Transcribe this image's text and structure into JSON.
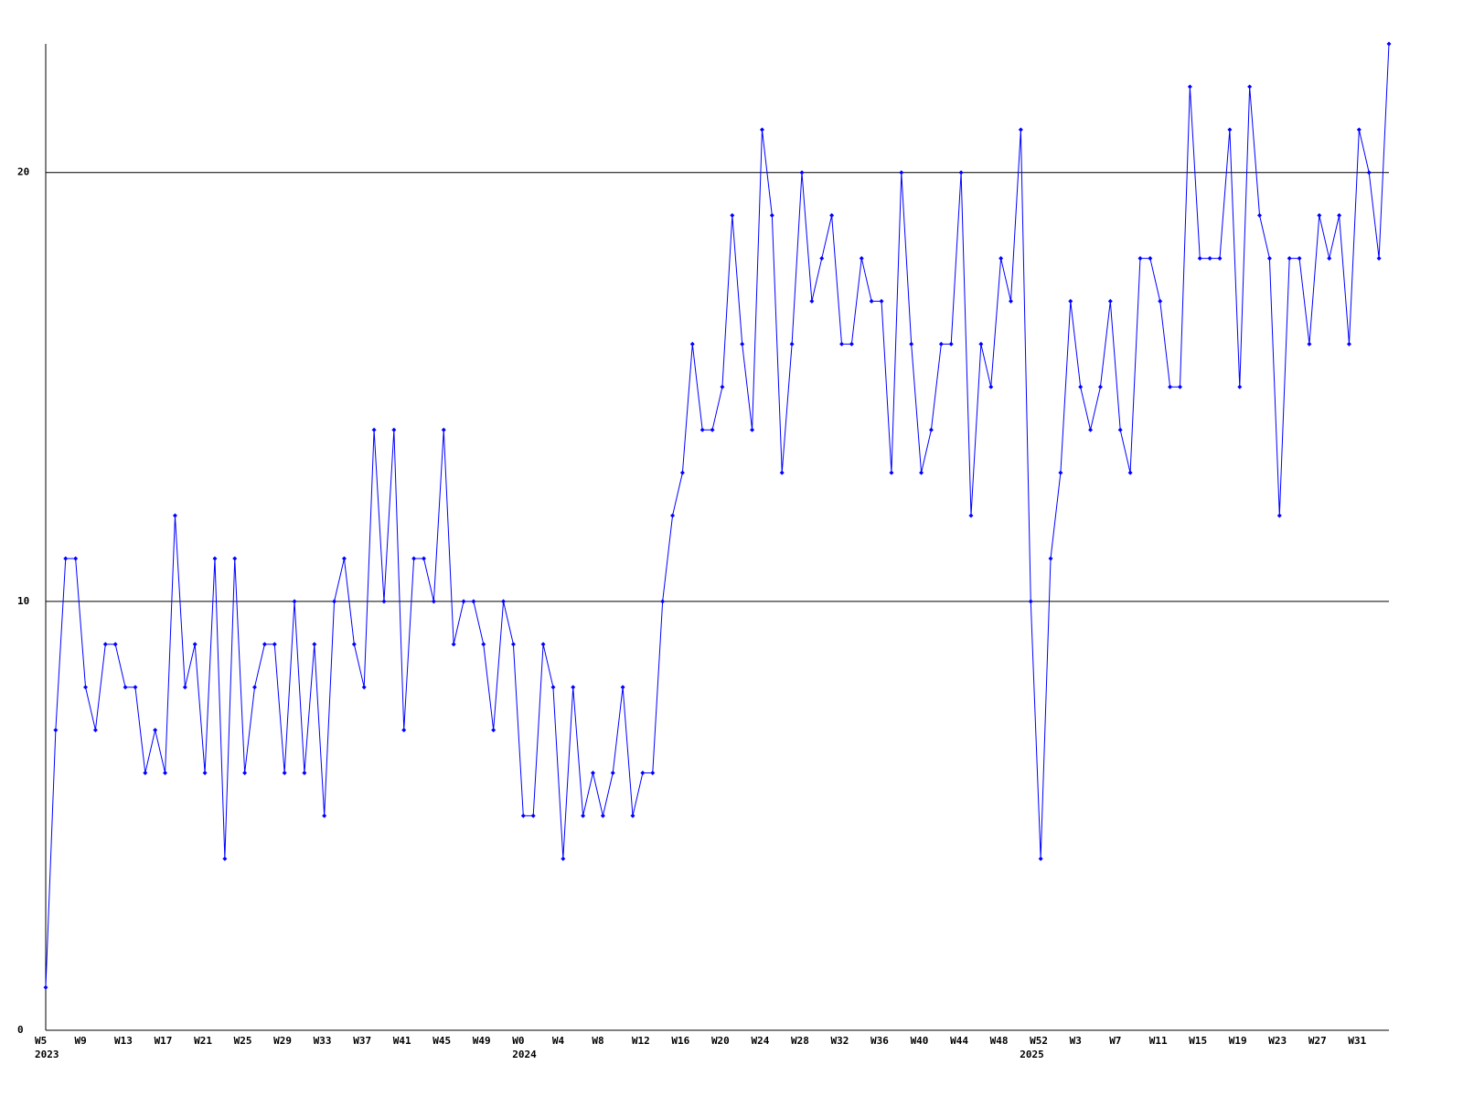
{
  "chart_data": {
    "type": "line",
    "color": "#0000ff",
    "grid": true,
    "ylim": [
      0,
      23
    ],
    "yticks": [
      0,
      10,
      20
    ],
    "categories": [
      "W5",
      null,
      null,
      null,
      "W9",
      null,
      null,
      null,
      "W13",
      null,
      null,
      null,
      "W17",
      null,
      null,
      null,
      "W21",
      null,
      null,
      null,
      "W25",
      null,
      null,
      null,
      "W29",
      null,
      null,
      null,
      "W33",
      null,
      null,
      null,
      "W37",
      null,
      null,
      null,
      "W41",
      null,
      null,
      null,
      "W45",
      null,
      null,
      null,
      "W49",
      null,
      null,
      null,
      "W0",
      null,
      null,
      null,
      "W4",
      null,
      null,
      null,
      "W8",
      null,
      null,
      null,
      "W12",
      null,
      null,
      null,
      "W16",
      null,
      null,
      null,
      "W20",
      null,
      null,
      null,
      "W24",
      null,
      null,
      null,
      "W28",
      null,
      null,
      null,
      "W32",
      null,
      null,
      null,
      "W36",
      null,
      null,
      null,
      "W40",
      null,
      null,
      null,
      "W44",
      null,
      null,
      null,
      "W48",
      null,
      null,
      null,
      "W52",
      null,
      null,
      null,
      "W3",
      null,
      null,
      null,
      "W7",
      null,
      null,
      null,
      "W11",
      null,
      null,
      null,
      "W15",
      null,
      null,
      null,
      "W19",
      null,
      null,
      null,
      "W23",
      null,
      null,
      null,
      "W27",
      null,
      null,
      null,
      "W31",
      null,
      null,
      null
    ],
    "years": [
      "2023",
      null,
      null,
      null,
      null,
      null,
      null,
      null,
      null,
      null,
      null,
      null,
      null,
      null,
      null,
      null,
      null,
      null,
      null,
      null,
      null,
      null,
      null,
      null,
      null,
      null,
      null,
      null,
      null,
      null,
      null,
      null,
      null,
      null,
      null,
      null,
      null,
      null,
      null,
      null,
      null,
      null,
      null,
      null,
      null,
      null,
      null,
      null,
      "2024",
      null,
      null,
      null,
      null,
      null,
      null,
      null,
      null,
      null,
      null,
      null,
      null,
      null,
      null,
      null,
      null,
      null,
      null,
      null,
      null,
      null,
      null,
      null,
      null,
      null,
      null,
      null,
      null,
      null,
      null,
      null,
      null,
      null,
      null,
      null,
      null,
      null,
      null,
      null,
      null,
      null,
      null,
      null,
      null,
      null,
      null,
      null,
      null,
      null,
      null,
      "2025",
      null,
      null,
      null,
      null,
      null,
      null,
      null,
      null,
      null,
      null,
      null,
      null,
      null,
      null,
      null,
      null,
      null,
      null,
      null,
      null,
      null,
      null,
      null,
      null,
      null,
      null,
      null,
      null,
      null,
      null,
      null,
      null,
      null,
      null
    ],
    "values": [
      1,
      7,
      11,
      11,
      8,
      7,
      9,
      9,
      8,
      8,
      6,
      7,
      6,
      12,
      8,
      9,
      6,
      11,
      4,
      11,
      6,
      8,
      9,
      9,
      6,
      10,
      6,
      9,
      5,
      10,
      11,
      9,
      8,
      14,
      10,
      14,
      7,
      11,
      11,
      10,
      14,
      9,
      10,
      10,
      9,
      7,
      10,
      9,
      5,
      5,
      9,
      8,
      4,
      8,
      5,
      6,
      5,
      6,
      8,
      5,
      6,
      6,
      10,
      12,
      13,
      16,
      14,
      14,
      15,
      19,
      16,
      14,
      21,
      19,
      13,
      16,
      20,
      17,
      18,
      19,
      16,
      16,
      18,
      17,
      17,
      13,
      20,
      16,
      13,
      14,
      16,
      16,
      20,
      12,
      16,
      15,
      18,
      17,
      21,
      10,
      4,
      11,
      13,
      17,
      15,
      14,
      15,
      17,
      14,
      13,
      18,
      18,
      17,
      15,
      15,
      22,
      18,
      18,
      18,
      21,
      15,
      22,
      19,
      18,
      12,
      18,
      18,
      16,
      19,
      18,
      19,
      16,
      21,
      20,
      18,
      23
    ]
  }
}
